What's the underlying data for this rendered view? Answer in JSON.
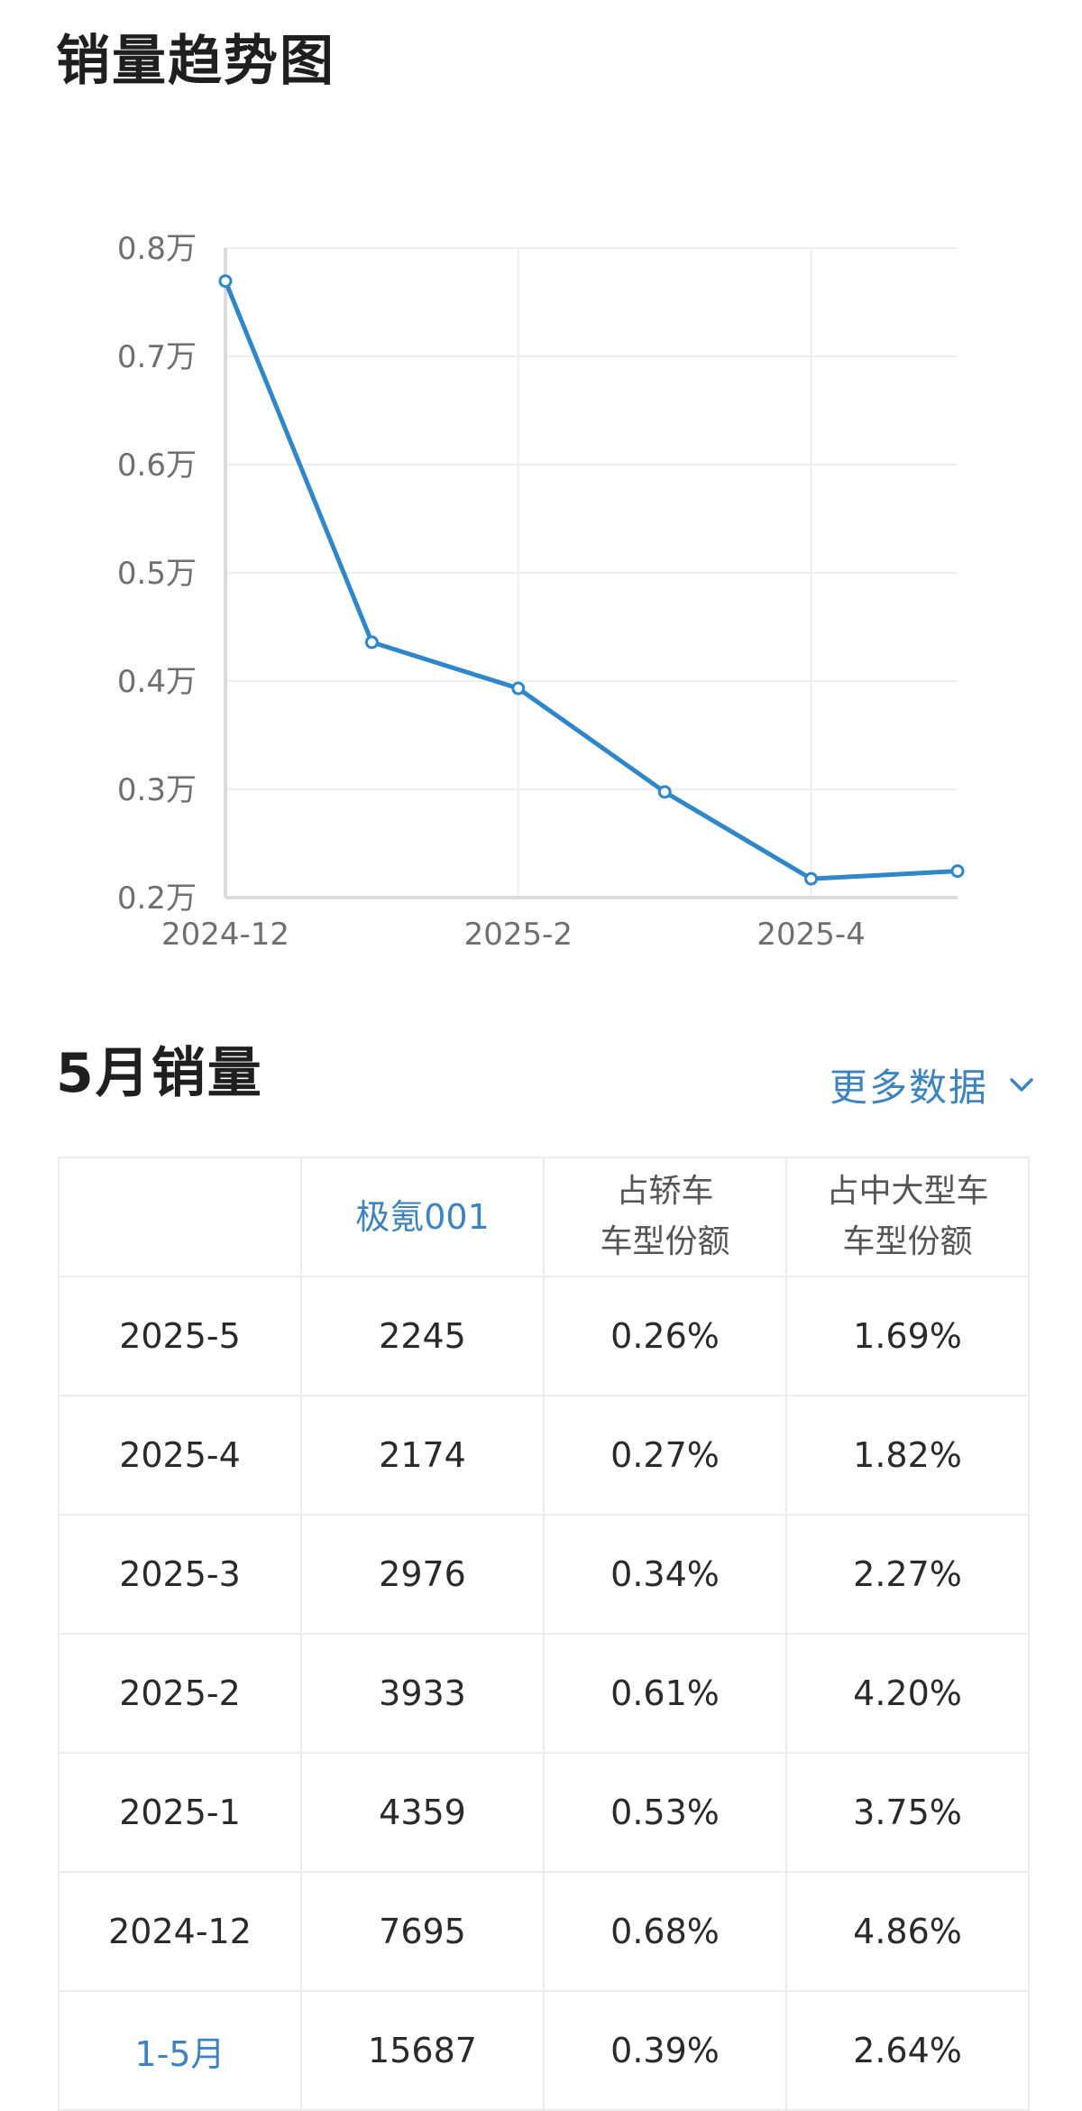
{
  "trend": {
    "title": "销量趋势图"
  },
  "chart_data": {
    "type": "line",
    "categories": [
      "2024-12",
      "2025-1",
      "2025-2",
      "2025-3",
      "2025-4",
      "2025-5"
    ],
    "x_tick_labels": [
      "2024-12",
      "2025-2",
      "2025-4"
    ],
    "y_tick_labels": [
      "0.8万",
      "0.7万",
      "0.6万",
      "0.5万",
      "0.4万",
      "0.3万",
      "0.2万"
    ],
    "y_ticks": [
      0.8,
      0.7,
      0.6,
      0.5,
      0.4,
      0.3,
      0.2
    ],
    "ylim": [
      0.2,
      0.8
    ],
    "series": [
      {
        "values": [
          0.7695,
          0.4359,
          0.3933,
          0.2976,
          0.2174,
          0.2245
        ]
      }
    ],
    "line_color": "#2f86c8",
    "grid": true,
    "title": "",
    "xlabel": "",
    "ylabel": ""
  },
  "sales": {
    "title": "5月销量",
    "more_label": "更多数据",
    "more_icon": "chevron-down-icon",
    "accent_color": "#3d83bf",
    "headers": [
      {
        "lines": [
          ""
        ]
      },
      {
        "lines": [
          "极氪001"
        ]
      },
      {
        "lines": [
          "占轿车",
          "车型份额"
        ]
      },
      {
        "lines": [
          "占中大型车",
          "车型份额"
        ]
      }
    ],
    "rows": [
      [
        "2025-5",
        "2245",
        "0.26%",
        "1.69%"
      ],
      [
        "2025-4",
        "2174",
        "0.27%",
        "1.82%"
      ],
      [
        "2025-3",
        "2976",
        "0.34%",
        "2.27%"
      ],
      [
        "2025-2",
        "3933",
        "0.61%",
        "4.20%"
      ],
      [
        "2025-1",
        "4359",
        "0.53%",
        "3.75%"
      ],
      [
        "2024-12",
        "7695",
        "0.68%",
        "4.86%"
      ]
    ],
    "total_row": [
      "1-5月",
      "15687",
      "0.39%",
      "2.64%"
    ]
  }
}
